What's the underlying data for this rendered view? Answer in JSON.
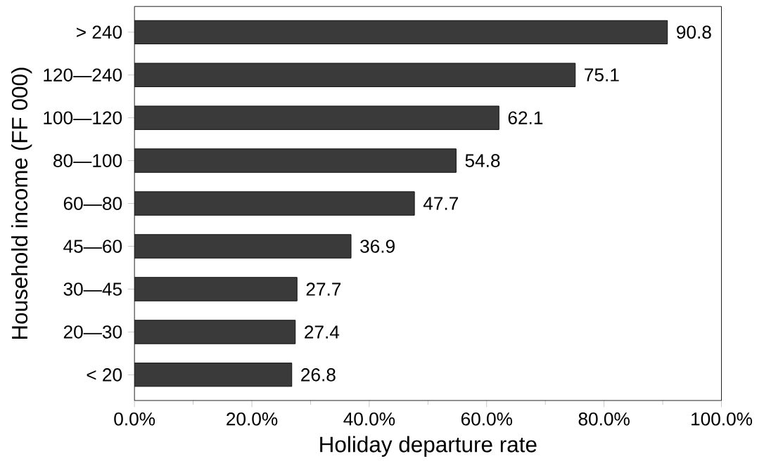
{
  "chart_data": {
    "type": "bar",
    "orientation": "horizontal",
    "xlabel": "Holiday departure rate",
    "ylabel": "Household income (FF 000)",
    "categories": [
      "> 240",
      "120—240",
      "100—120",
      "80—100",
      "60—80",
      "45—60",
      "30—45",
      "20—30",
      "< 20"
    ],
    "values": [
      90.8,
      75.1,
      62.1,
      54.8,
      47.7,
      36.9,
      27.7,
      27.4,
      26.8
    ],
    "color": "#3a3a3a",
    "data_labels": true,
    "xlim": [
      0,
      100
    ],
    "xticks": [
      {
        "value": 0,
        "label": "0.0%"
      },
      {
        "value": 20,
        "label": "20.0%"
      },
      {
        "value": 40,
        "label": "40.0%"
      },
      {
        "value": 60,
        "label": "60.0%"
      },
      {
        "value": 80,
        "label": "80.0%"
      },
      {
        "value": 100,
        "label": "100.0%"
      }
    ]
  }
}
